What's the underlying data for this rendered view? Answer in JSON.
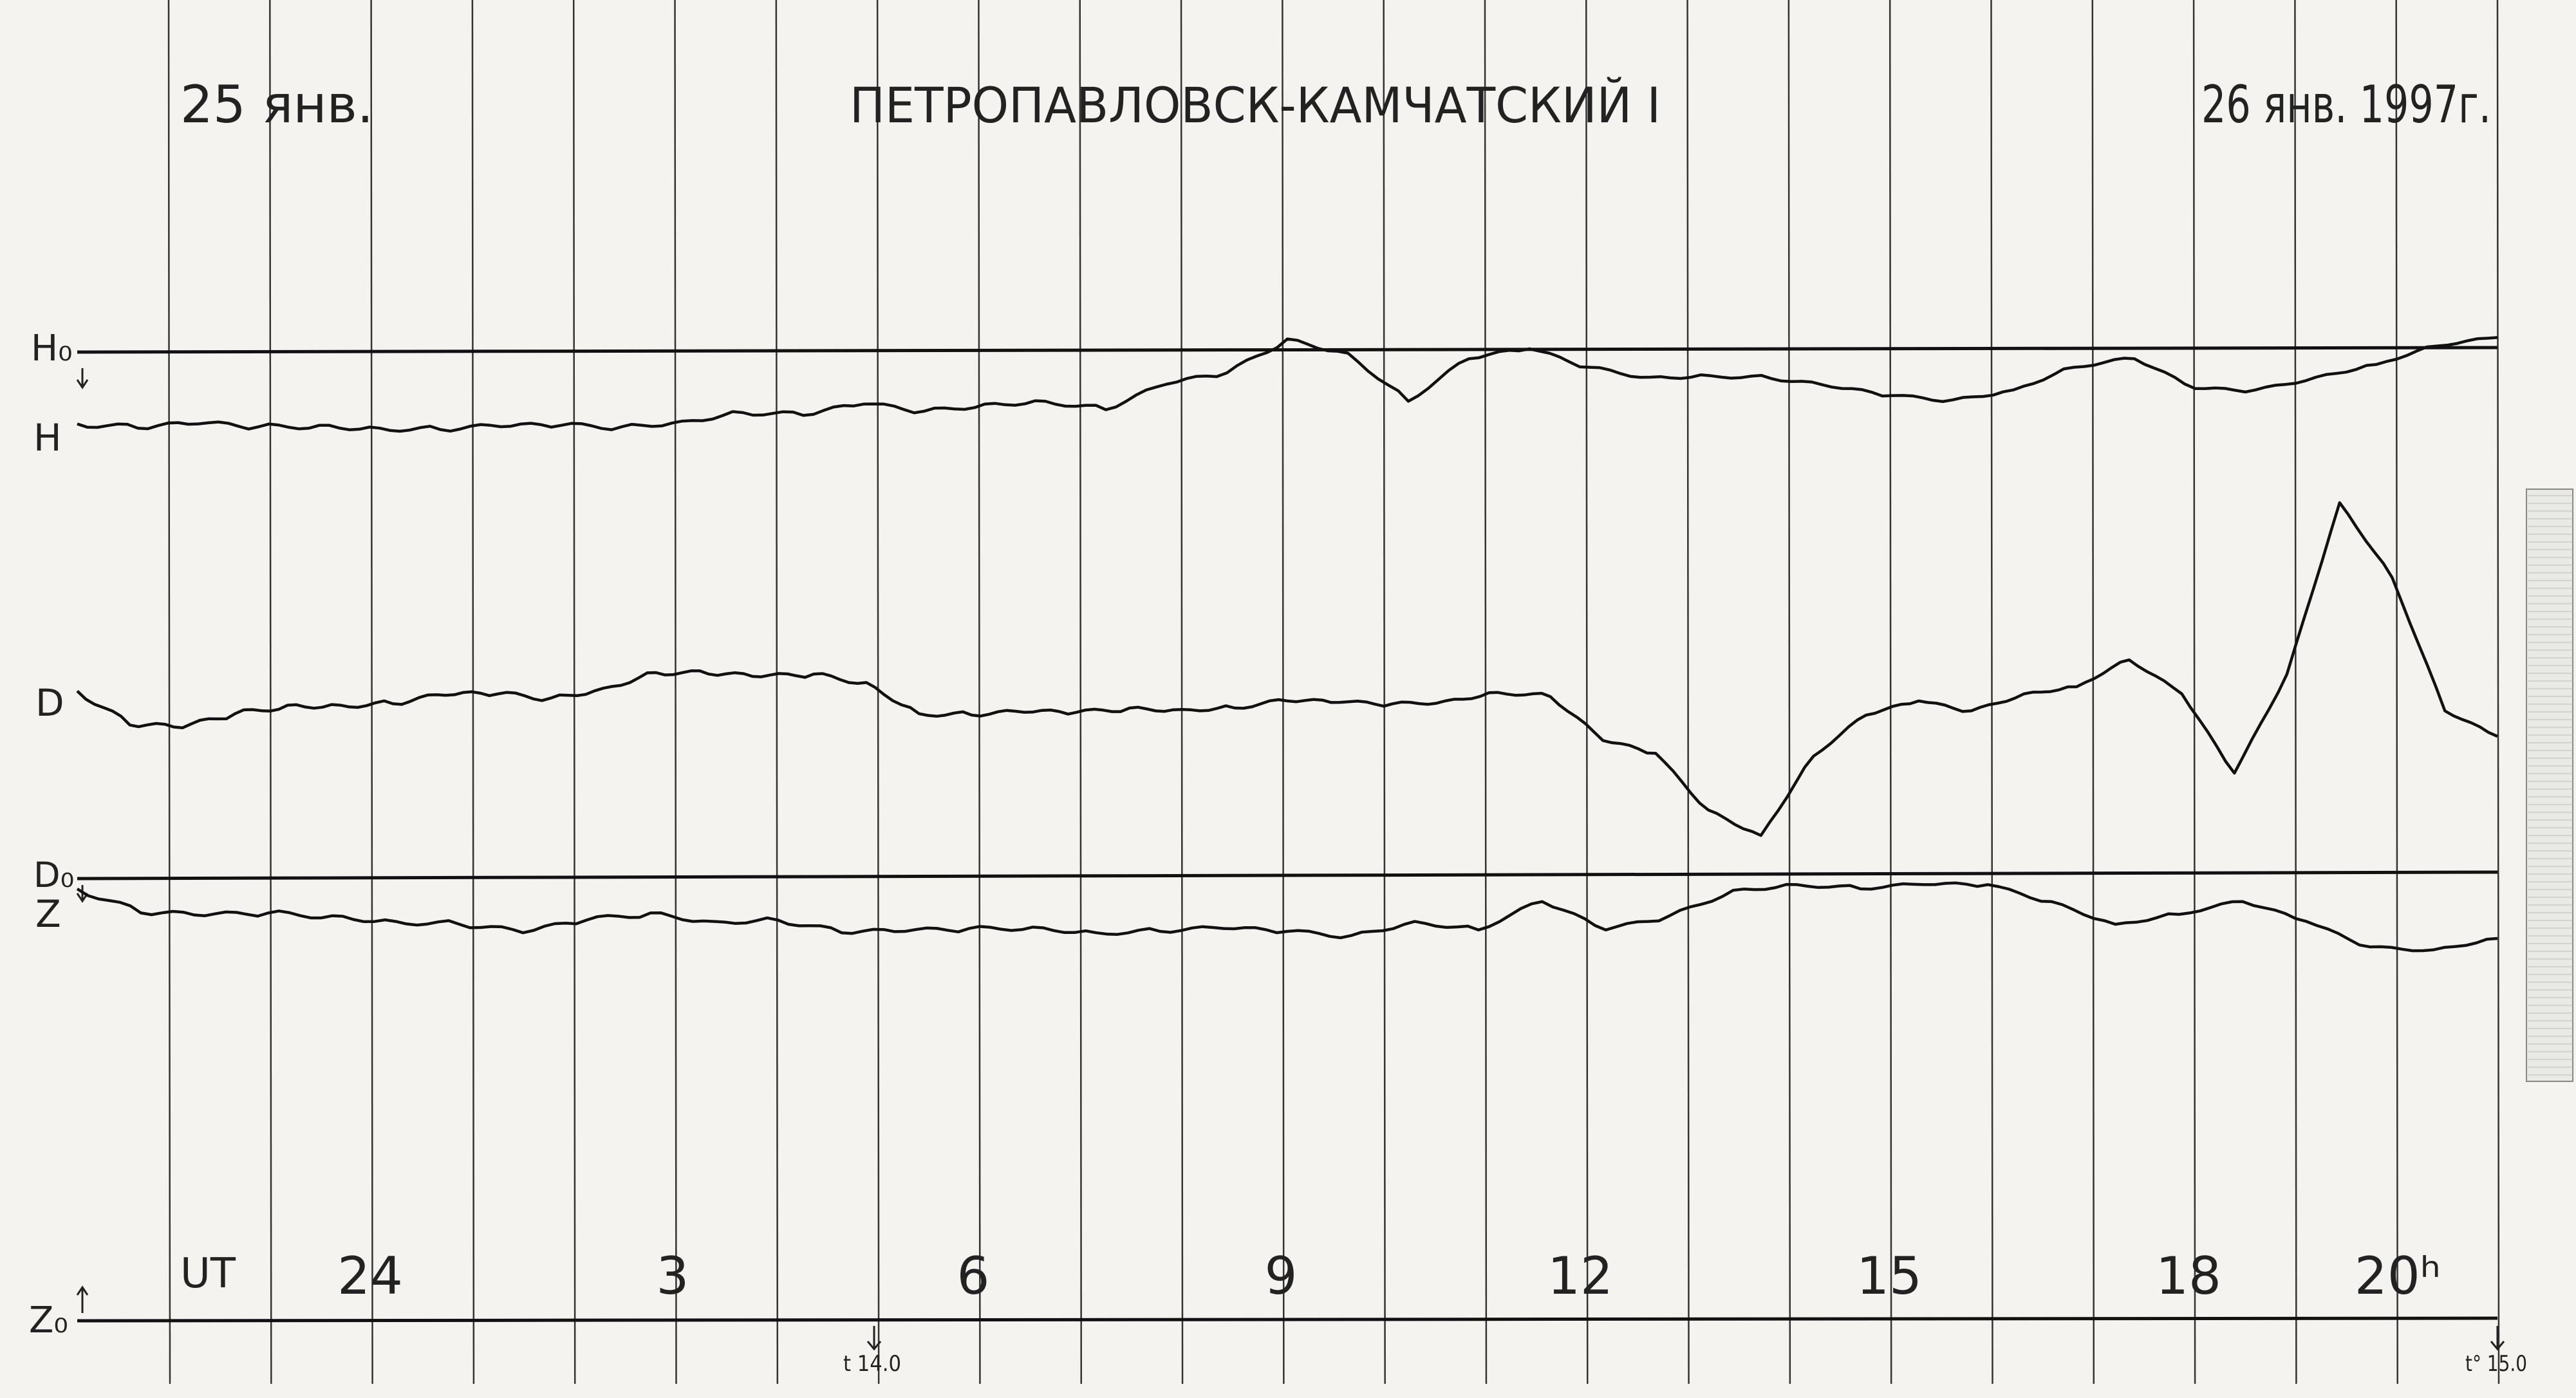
{
  "chart_data": {
    "type": "line",
    "title": "ПЕТРОПАВЛОВСК-КАМЧАТСКИЙ I",
    "date_start": "25 янв.",
    "date_end": "26 янв. 1997г.",
    "time_label": "UT",
    "x_ticks": [
      "24",
      "3",
      "6",
      "9",
      "12",
      "15",
      "18",
      "20ʰ"
    ],
    "baselines": {
      "h0": "H₀",
      "d0": "D₀",
      "z0": "Z₀"
    },
    "temperature_marks": [
      "t 14.0",
      "t° 15.0"
    ],
    "series": [
      {
        "name": "H",
        "points": [
          [
            0,
            22
          ],
          [
            1,
            19
          ],
          [
            2,
            22
          ],
          [
            3,
            20
          ],
          [
            4,
            21
          ],
          [
            5,
            19
          ],
          [
            6,
            18
          ],
          [
            7,
            20
          ],
          [
            8,
            21
          ],
          [
            9,
            20
          ],
          [
            10,
            24
          ],
          [
            11,
            30
          ],
          [
            12,
            28
          ],
          [
            13,
            36
          ],
          [
            14,
            31
          ],
          [
            15,
            36
          ],
          [
            16,
            38
          ],
          [
            17,
            32
          ],
          [
            18,
            50
          ],
          [
            19,
            58
          ],
          [
            20,
            82
          ],
          [
            21,
            72
          ],
          [
            22,
            38
          ],
          [
            23,
            68
          ],
          [
            24,
            75
          ],
          [
            25,
            62
          ],
          [
            26,
            55
          ],
          [
            27,
            56
          ],
          [
            28,
            54
          ],
          [
            29,
            48
          ],
          [
            30,
            42
          ],
          [
            31,
            39
          ],
          [
            32,
            46
          ],
          [
            33,
            62
          ],
          [
            34,
            68
          ],
          [
            35,
            47
          ],
          [
            36,
            46
          ],
          [
            37,
            55
          ],
          [
            38,
            64
          ],
          [
            39,
            77
          ],
          [
            40,
            83
          ]
        ]
      },
      {
        "name": "D",
        "points": [
          [
            0,
            72
          ],
          [
            1,
            48
          ],
          [
            2,
            46
          ],
          [
            3,
            56
          ],
          [
            4,
            62
          ],
          [
            5,
            62
          ],
          [
            6,
            63
          ],
          [
            7,
            69
          ],
          [
            8,
            70
          ],
          [
            9,
            67
          ],
          [
            10,
            74
          ],
          [
            11,
            85
          ],
          [
            12,
            84
          ],
          [
            13,
            82
          ],
          [
            14,
            84
          ],
          [
            15,
            78
          ],
          [
            16,
            56
          ],
          [
            17,
            55
          ],
          [
            18,
            57
          ],
          [
            19,
            57
          ],
          [
            20,
            60
          ],
          [
            21,
            59
          ],
          [
            22,
            60
          ],
          [
            23,
            65
          ],
          [
            24,
            64
          ],
          [
            25,
            63
          ],
          [
            26,
            65
          ],
          [
            27,
            71
          ],
          [
            28,
            68
          ],
          [
            29,
            37
          ],
          [
            30,
            28
          ],
          [
            31,
            -12
          ],
          [
            32,
            -30
          ],
          [
            33,
            26
          ],
          [
            34,
            55
          ],
          [
            35,
            65
          ],
          [
            36,
            58
          ],
          [
            37,
            70
          ],
          [
            38,
            75
          ],
          [
            39,
            94
          ],
          [
            40,
            70
          ],
          [
            41,
            14
          ],
          [
            42,
            84
          ],
          [
            43,
            205
          ],
          [
            44,
            152
          ],
          [
            45,
            58
          ],
          [
            46,
            40
          ]
        ]
      },
      {
        "name": "Z",
        "points": [
          [
            0,
            35
          ],
          [
            1,
            18
          ],
          [
            2,
            16
          ],
          [
            3,
            18
          ],
          [
            4,
            16
          ],
          [
            5,
            12
          ],
          [
            6,
            10
          ],
          [
            7,
            4
          ],
          [
            8,
            13
          ],
          [
            9,
            18
          ],
          [
            10,
            12
          ],
          [
            11,
            13
          ],
          [
            12,
            4
          ],
          [
            13,
            5
          ],
          [
            14,
            7
          ],
          [
            15,
            8
          ],
          [
            16,
            4
          ],
          [
            17,
            5
          ],
          [
            18,
            7
          ],
          [
            19,
            5
          ],
          [
            20,
            2
          ],
          [
            21,
            12
          ],
          [
            22,
            6
          ],
          [
            23,
            26
          ],
          [
            24,
            6
          ],
          [
            25,
            16
          ],
          [
            26,
            34
          ],
          [
            27,
            38
          ],
          [
            28,
            35
          ],
          [
            29,
            38
          ],
          [
            30,
            38
          ],
          [
            31,
            26
          ],
          [
            32,
            10
          ],
          [
            33,
            17
          ],
          [
            34,
            26
          ],
          [
            35,
            12
          ],
          [
            36,
            -6
          ],
          [
            37,
            -8
          ],
          [
            38,
            0
          ]
        ]
      }
    ]
  }
}
